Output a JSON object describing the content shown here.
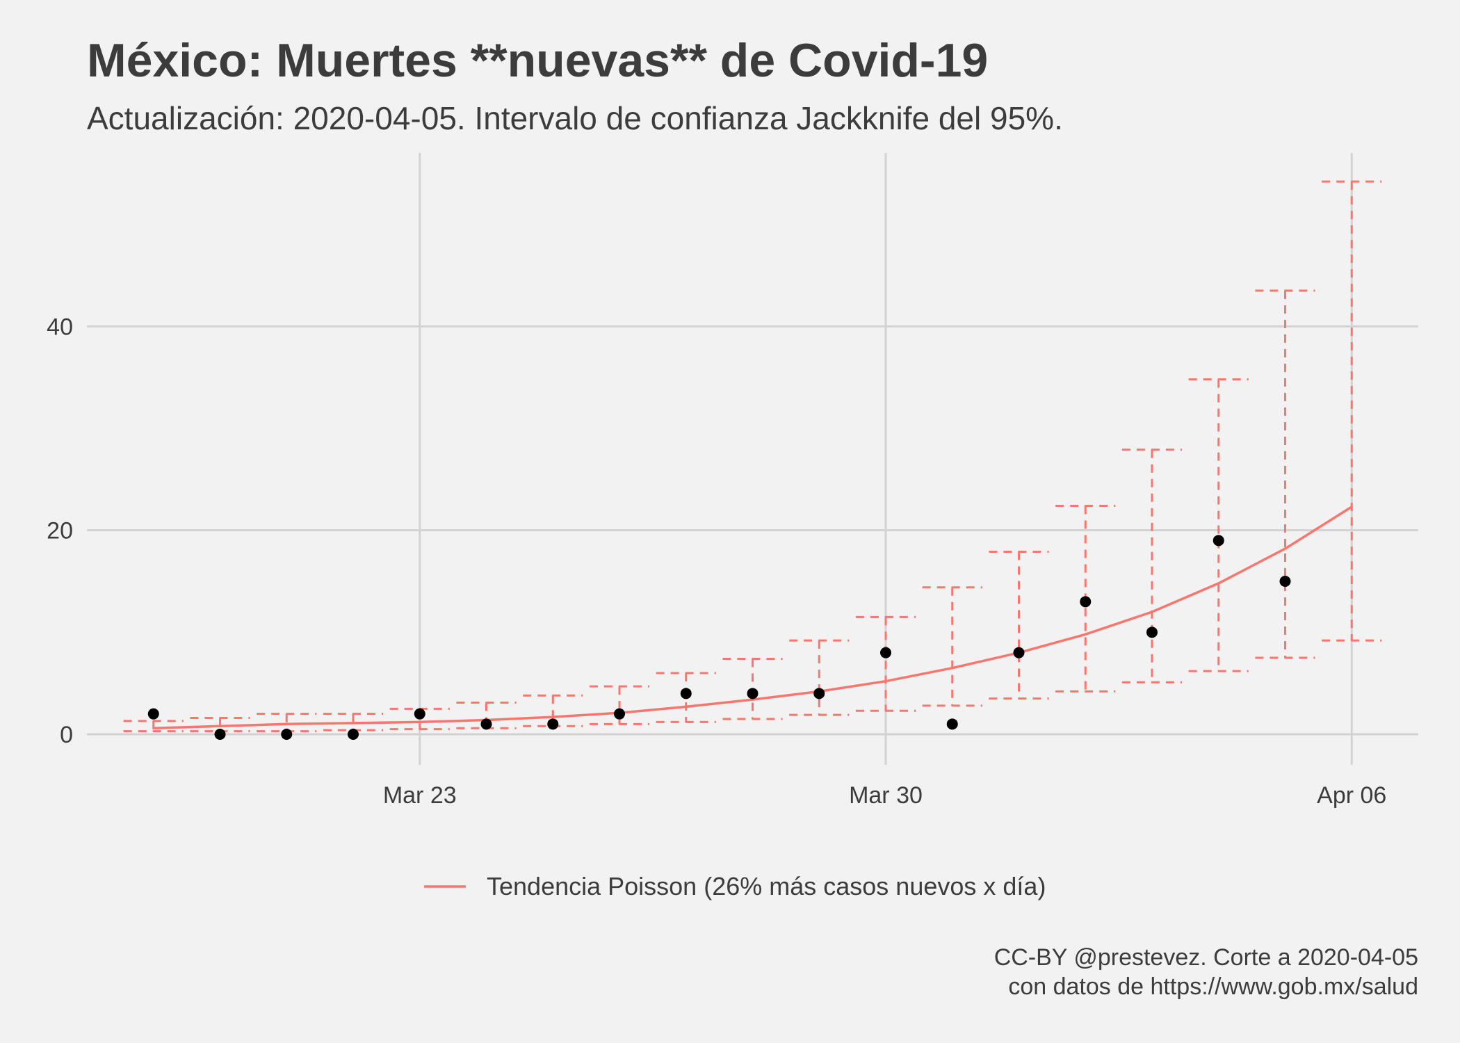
{
  "chart_data": {
    "type": "scatter",
    "title": "México: Muertes **nuevas** de Covid-19",
    "subtitle": "Actualización: 2020-04-05. Intervalo de confianza Jackknife del 95%.",
    "caption": [
      "CC-BY @prestevez. Corte a 2020-04-05",
      "con datos de https://www.gob.mx/salud"
    ],
    "xlabel": "",
    "ylabel": "",
    "xlim": [
      "2020-03-18",
      "2020-04-07"
    ],
    "ylim": [
      -3,
      57
    ],
    "x_ticks": [
      {
        "date": "2020-03-23",
        "label": "Mar 23"
      },
      {
        "date": "2020-03-30",
        "label": "Mar 30"
      },
      {
        "date": "2020-04-06",
        "label": "Apr 06"
      }
    ],
    "y_ticks": [
      0,
      20,
      40
    ],
    "grid": true,
    "legend_position": "bottom",
    "colors": {
      "trend": "#f8766d",
      "points": "#000000",
      "grid": "#d2d2d2",
      "background": "#f2f2f2"
    },
    "points": [
      {
        "date": "2020-03-19",
        "y": 2
      },
      {
        "date": "2020-03-20",
        "y": 0
      },
      {
        "date": "2020-03-21",
        "y": 0
      },
      {
        "date": "2020-03-22",
        "y": 0
      },
      {
        "date": "2020-03-23",
        "y": 2
      },
      {
        "date": "2020-03-24",
        "y": 1
      },
      {
        "date": "2020-03-25",
        "y": 1
      },
      {
        "date": "2020-03-26",
        "y": 2
      },
      {
        "date": "2020-03-27",
        "y": 4
      },
      {
        "date": "2020-03-28",
        "y": 4
      },
      {
        "date": "2020-03-29",
        "y": 4
      },
      {
        "date": "2020-03-30",
        "y": 8
      },
      {
        "date": "2020-03-31",
        "y": 1
      },
      {
        "date": "2020-04-01",
        "y": 8
      },
      {
        "date": "2020-04-02",
        "y": 13
      },
      {
        "date": "2020-04-03",
        "y": 10
      },
      {
        "date": "2020-04-04",
        "y": 19
      },
      {
        "date": "2020-04-05",
        "y": 15
      }
    ],
    "series": [
      {
        "name": "Tendencia Poisson (26% más casos nuevos x día)",
        "type": "line",
        "x": [
          "2020-03-19",
          "2020-03-20",
          "2020-03-21",
          "2020-03-22",
          "2020-03-23",
          "2020-03-24",
          "2020-03-25",
          "2020-03-26",
          "2020-03-27",
          "2020-03-28",
          "2020-03-29",
          "2020-03-30",
          "2020-03-31",
          "2020-04-01",
          "2020-04-02",
          "2020-04-03",
          "2020-04-04",
          "2020-04-05",
          "2020-04-06"
        ],
        "y": [
          0.6,
          0.8,
          1.0,
          1.1,
          1.2,
          1.4,
          1.7,
          2.1,
          2.7,
          3.4,
          4.2,
          5.2,
          6.5,
          8.0,
          9.8,
          12.0,
          14.8,
          18.2,
          22.3
        ],
        "lower": [
          0.3,
          0.3,
          0.3,
          0.4,
          0.5,
          0.6,
          0.8,
          1.0,
          1.2,
          1.5,
          1.9,
          2.3,
          2.8,
          3.5,
          4.2,
          5.1,
          6.2,
          7.5,
          9.2
        ],
        "upper": [
          1.3,
          1.6,
          2.0,
          2.0,
          2.5,
          3.1,
          3.8,
          4.7,
          6.0,
          7.4,
          9.2,
          11.5,
          14.4,
          17.9,
          22.4,
          27.9,
          34.8,
          43.5,
          54.2
        ]
      }
    ]
  }
}
